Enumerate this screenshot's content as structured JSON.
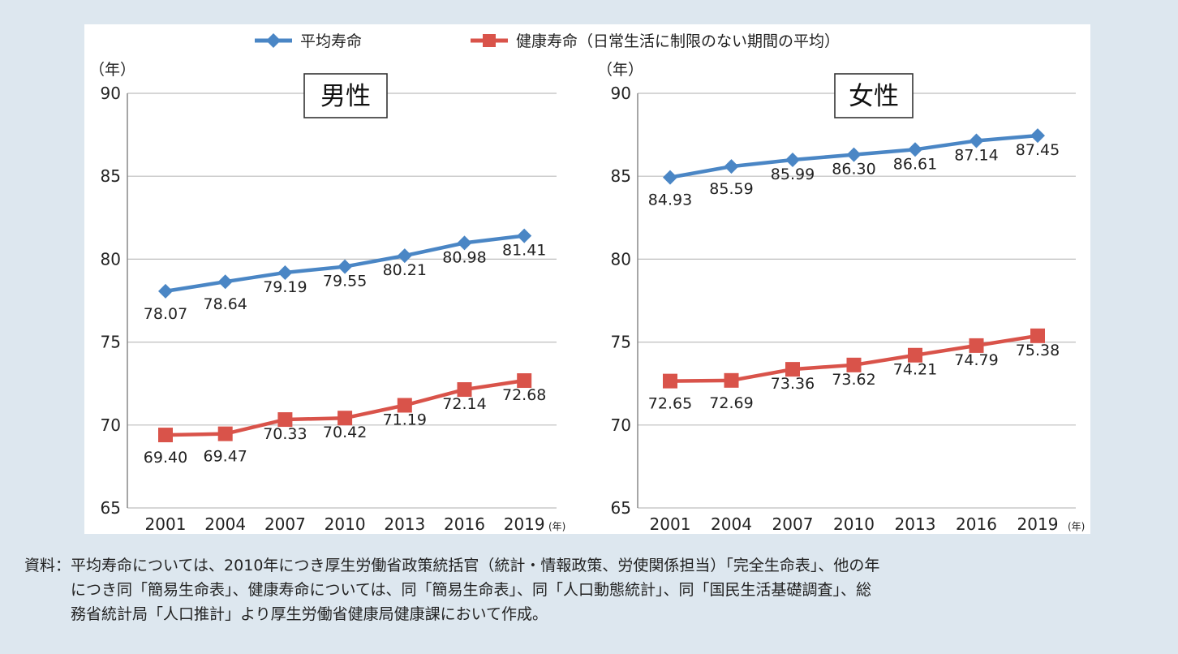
{
  "legend": [
    {
      "name": "平均寿命",
      "color": "#4a86c5",
      "marker": "diamond"
    },
    {
      "name": "健康寿命（日常生活に制限のない期間の平均）",
      "color": "#d9534a",
      "marker": "square"
    }
  ],
  "chart_data": [
    {
      "type": "line",
      "title": "男性",
      "ylabel": "（年）",
      "xlabel_unit": "(年)",
      "categories": [
        "2001",
        "2004",
        "2007",
        "2010",
        "2013",
        "2016",
        "2019"
      ],
      "ylim": [
        65,
        90
      ],
      "yticks": [
        65,
        70,
        75,
        80,
        85,
        90
      ],
      "grid": true,
      "series": [
        {
          "name": "平均寿命",
          "color": "#4a86c5",
          "marker": "diamond",
          "values": [
            78.07,
            78.64,
            79.19,
            79.55,
            80.21,
            80.98,
            81.41
          ],
          "labels": [
            "78.07",
            "78.64",
            "79.19",
            "79.55",
            "80.21",
            "80.98",
            "81.41"
          ]
        },
        {
          "name": "健康寿命（日常生活に制限のない期間の平均）",
          "color": "#d9534a",
          "marker": "square",
          "values": [
            69.4,
            69.47,
            70.33,
            70.42,
            71.19,
            72.14,
            72.68
          ],
          "labels": [
            "69.40",
            "69.47",
            "70.33",
            "70.42",
            "71.19",
            "72.14",
            "72.68"
          ]
        }
      ]
    },
    {
      "type": "line",
      "title": "女性",
      "ylabel": "（年）",
      "xlabel_unit": "(年)",
      "categories": [
        "2001",
        "2004",
        "2007",
        "2010",
        "2013",
        "2016",
        "2019"
      ],
      "ylim": [
        65,
        90
      ],
      "yticks": [
        65,
        70,
        75,
        80,
        85,
        90
      ],
      "grid": true,
      "series": [
        {
          "name": "平均寿命",
          "color": "#4a86c5",
          "marker": "diamond",
          "values": [
            84.93,
            85.59,
            85.99,
            86.3,
            86.61,
            87.14,
            87.45
          ],
          "labels": [
            "84.93",
            "85.59",
            "85.99",
            "86.30",
            "86.61",
            "87.14",
            "87.45"
          ]
        },
        {
          "name": "健康寿命（日常生活に制限のない期間の平均）",
          "color": "#d9534a",
          "marker": "square",
          "values": [
            72.65,
            72.69,
            73.36,
            73.62,
            74.21,
            74.79,
            75.38
          ],
          "labels": [
            "72.65",
            "72.69",
            "73.36",
            "73.62",
            "74.21",
            "74.79",
            "75.38"
          ]
        }
      ]
    }
  ],
  "source_text": "資料：平均寿命については、2010年につき厚生労働省政策統括官（統計・情報政策、労使関係担当）「完全生命表」、他の年\n　　　につき同「簡易生命表」、健康寿命については、同「簡易生命表」、同「人口動態統計」、同「国民生活基礎調査」、総\n　　　務省統計局「人口推計」より厚生労働省健康局健康課において作成。"
}
